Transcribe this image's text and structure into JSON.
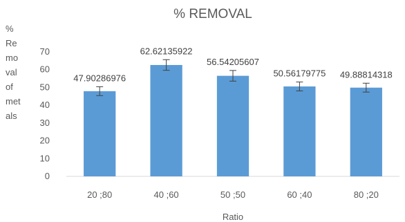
{
  "chart_data": {
    "type": "bar",
    "title": "% REMOVAL",
    "xlabel": "Ratio",
    "ylabel_lines": [
      "%",
      "Re",
      "mo",
      "val",
      "of",
      "met",
      "als"
    ],
    "categories": [
      "20 ;80",
      "40 ;60",
      "50 ;50",
      "60 ;40",
      "80 ;20"
    ],
    "values": [
      47.90286976,
      62.62135922,
      56.54205607,
      50.56179775,
      49.88814318
    ],
    "value_labels": [
      "47.90286976",
      "62.62135922",
      "56.54205607",
      "50.56179775",
      "49.88814318"
    ],
    "error": [
      2.5,
      3,
      3,
      2.5,
      2.5
    ],
    "ylim": [
      0,
      70
    ],
    "yticks": [
      0,
      10,
      20,
      30,
      40,
      50,
      60,
      70
    ],
    "bar_color": "#5b9bd5",
    "error_color": "#404040",
    "grid": false,
    "legend": "none"
  }
}
